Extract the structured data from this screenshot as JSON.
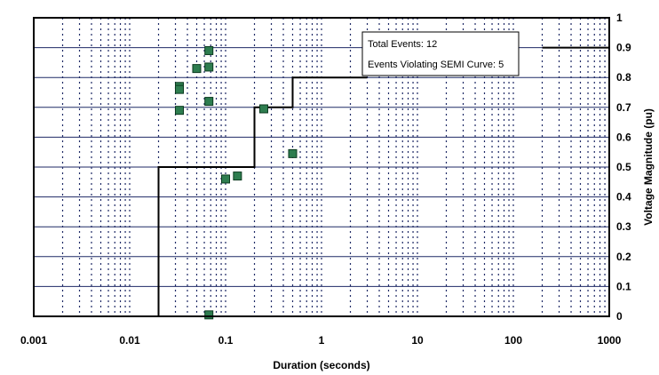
{
  "chart_data": {
    "type": "scatter",
    "xlabel": "Duration (seconds)",
    "ylabel": "Voltage Magnitude (pu)",
    "xscale": "log",
    "xlim": [
      0.001,
      1000
    ],
    "ylim": [
      0,
      1
    ],
    "x_ticks": [
      {
        "value": 0.001,
        "label": "0.001"
      },
      {
        "value": 0.01,
        "label": "0.01"
      },
      {
        "value": 0.1,
        "label": "0.1"
      },
      {
        "value": 1,
        "label": "1"
      },
      {
        "value": 10,
        "label": "10"
      },
      {
        "value": 100,
        "label": "100"
      },
      {
        "value": 1000,
        "label": "1000"
      }
    ],
    "y_ticks": [
      {
        "value": 0,
        "label": "0"
      },
      {
        "value": 0.1,
        "label": "0.1"
      },
      {
        "value": 0.2,
        "label": "0.2"
      },
      {
        "value": 0.3,
        "label": "0.3"
      },
      {
        "value": 0.4,
        "label": "0.4"
      },
      {
        "value": 0.5,
        "label": "0.5"
      },
      {
        "value": 0.6,
        "label": "0.6"
      },
      {
        "value": 0.7,
        "label": "0.7"
      },
      {
        "value": 0.8,
        "label": "0.8"
      },
      {
        "value": 0.9,
        "label": "0.9"
      },
      {
        "value": 1,
        "label": "1"
      }
    ],
    "y_axis_side": "right",
    "grid": {
      "horizontal": "solid",
      "vertical_minor": "dotted"
    },
    "series": [
      {
        "kind": "points",
        "marker": "square",
        "color": "#2e7d4f",
        "points": [
          {
            "x": 0.033,
            "y": 0.77
          },
          {
            "x": 0.033,
            "y": 0.76
          },
          {
            "x": 0.033,
            "y": 0.69
          },
          {
            "x": 0.05,
            "y": 0.83
          },
          {
            "x": 0.067,
            "y": 0.89
          },
          {
            "x": 0.067,
            "y": 0.835
          },
          {
            "x": 0.067,
            "y": 0.72
          },
          {
            "x": 0.067,
            "y": 0.005
          },
          {
            "x": 0.1,
            "y": 0.46
          },
          {
            "x": 0.133,
            "y": 0.47
          },
          {
            "x": 0.25,
            "y": 0.695
          },
          {
            "x": 0.5,
            "y": 0.545
          }
        ]
      },
      {
        "kind": "step-line",
        "color": "#000000",
        "points": [
          {
            "x": 0.001,
            "y": 0
          },
          {
            "x": 0.02,
            "y": 0
          },
          {
            "x": 0.02,
            "y": 0.5
          },
          {
            "x": 0.2,
            "y": 0.5
          },
          {
            "x": 0.2,
            "y": 0.7
          },
          {
            "x": 0.5,
            "y": 0.7
          },
          {
            "x": 0.5,
            "y": 0.8
          },
          {
            "x": 3,
            "y": 0.8
          }
        ],
        "continuation": [
          {
            "x": 200,
            "y": 0.9
          },
          {
            "x": 1000,
            "y": 0.9
          }
        ]
      }
    ],
    "annotation": {
      "placement": "top-right",
      "lines": [
        "Total Events: 12",
        "Events Violating SEMI Curve: 5"
      ]
    },
    "colors": {
      "grid_line": "#1f2a66",
      "marker_fill": "#2e7d4f",
      "curve": "#000000"
    }
  }
}
